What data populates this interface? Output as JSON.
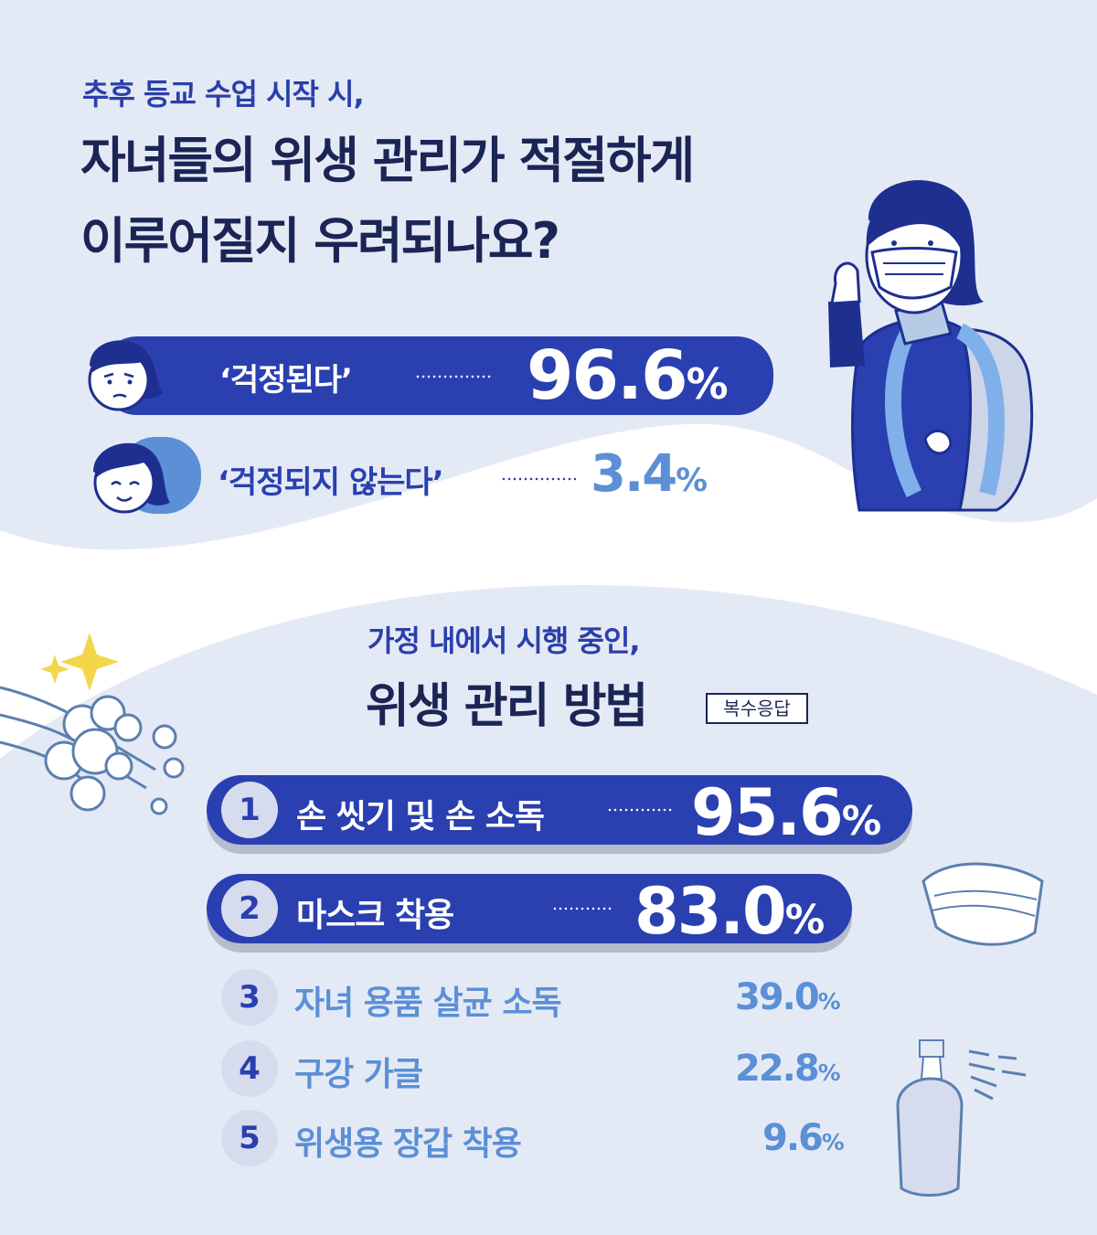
{
  "colors": {
    "background": "#e4eaf5",
    "primary": "#2a3fb0",
    "secondary": "#5b8fd6",
    "heading": "#1b2555"
  },
  "survey1": {
    "subtitle": "추후 등교 수업 시작 시,",
    "title_line1": "자녀들의 위생 관리가 적절하게",
    "title_line2": "이루어질지 우려되나요?",
    "answers": [
      {
        "label": "‘걱정된다’",
        "value": "96.6",
        "unit": "%"
      },
      {
        "label": "‘걱정되지 않는다’",
        "value": "3.4",
        "unit": "%"
      }
    ]
  },
  "survey2": {
    "subtitle": "가정 내에서 시행 중인,",
    "title": "위생 관리 방법",
    "badge": "복수응답",
    "items": [
      {
        "rank": "1",
        "label": "손 씻기 및 손 소독",
        "value": "95.6",
        "unit": "%"
      },
      {
        "rank": "2",
        "label": "마스크 착용",
        "value": "83.0",
        "unit": "%"
      },
      {
        "rank": "3",
        "label": "자녀 용품 살균 소독",
        "value": "39.0",
        "unit": "%"
      },
      {
        "rank": "4",
        "label": "구강 가글",
        "value": "22.8",
        "unit": "%"
      },
      {
        "rank": "5",
        "label": "위생용 장갑 착용",
        "value": "9.6",
        "unit": "%"
      }
    ]
  },
  "icons": [
    "worried-face-icon",
    "calm-face-icon",
    "student-with-mask-illustration",
    "washing-hands-icon",
    "sparkle-icon",
    "face-mask-icon",
    "spray-bottle-icon"
  ]
}
